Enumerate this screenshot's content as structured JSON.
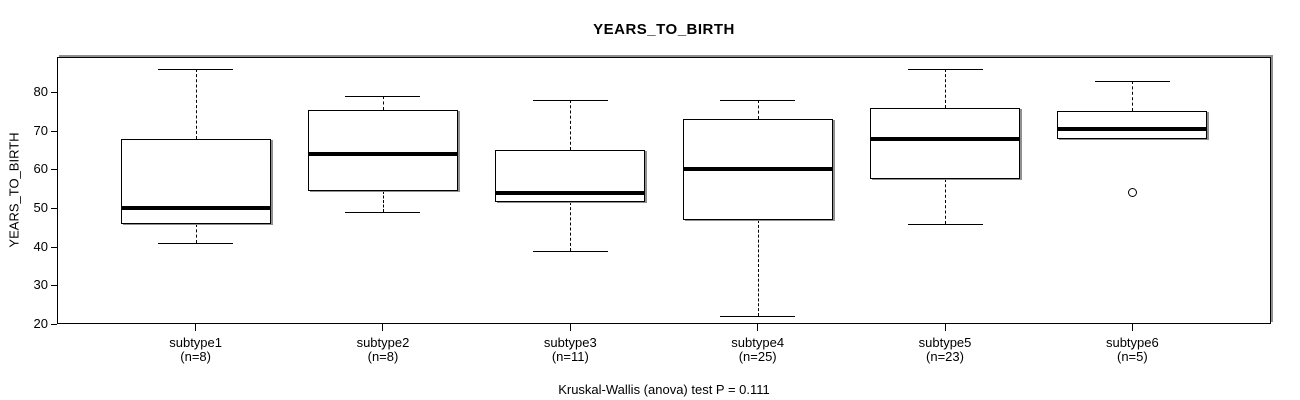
{
  "title": "YEARS_TO_BIRTH",
  "ylabel": "YEARS_TO_BIRTH",
  "caption": "Kruskal-Wallis (anova) test P = 0.111",
  "chart_data": {
    "type": "boxplot",
    "title": "YEARS_TO_BIRTH",
    "xlabel": "",
    "ylabel": "YEARS_TO_BIRTH",
    "caption": "Kruskal-Wallis (anova) test P = 0.111",
    "ylim": [
      20,
      89.1
    ],
    "yticks": [
      20,
      30,
      40,
      50,
      60,
      70,
      80
    ],
    "grid": false,
    "legend": "none",
    "groups": [
      {
        "label": "subtype1",
        "n_label": "(n=8)",
        "n": 8,
        "whisker_low": 41,
        "q1": 46,
        "median": 50,
        "q3": 68,
        "whisker_high": 86,
        "outliers": []
      },
      {
        "label": "subtype2",
        "n_label": "(n=8)",
        "n": 8,
        "whisker_low": 49,
        "q1": 54.5,
        "median": 64,
        "q3": 75.5,
        "whisker_high": 79,
        "outliers": []
      },
      {
        "label": "subtype3",
        "n_label": "(n=11)",
        "n": 11,
        "whisker_low": 39,
        "q1": 51.5,
        "median": 54,
        "q3": 65,
        "whisker_high": 78,
        "outliers": []
      },
      {
        "label": "subtype4",
        "n_label": "(n=25)",
        "n": 25,
        "whisker_low": 22,
        "q1": 47,
        "median": 60,
        "q3": 73,
        "whisker_high": 78,
        "outliers": []
      },
      {
        "label": "subtype5",
        "n_label": "(n=23)",
        "n": 23,
        "whisker_low": 46,
        "q1": 57.5,
        "median": 68,
        "q3": 76,
        "whisker_high": 86,
        "outliers": []
      },
      {
        "label": "subtype6",
        "n_label": "(n=5)",
        "n": 5,
        "whisker_low": 68,
        "q1": 68,
        "median": 70.5,
        "q3": 75,
        "whisker_high": 83,
        "outliers": [
          54
        ]
      }
    ],
    "colors": {
      "line": "#000000",
      "box_fill": "#ffffff",
      "shadow": "#909090",
      "background": "#ffffff"
    }
  }
}
